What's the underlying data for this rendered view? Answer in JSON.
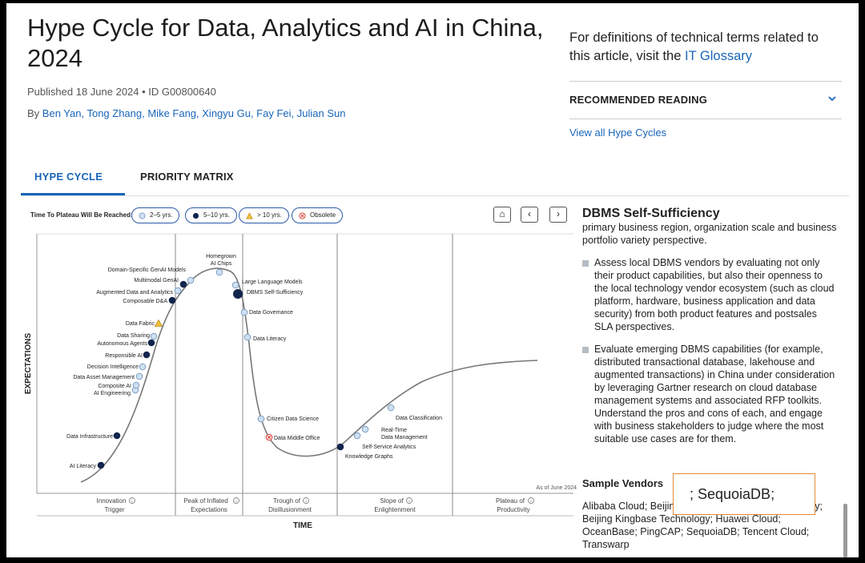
{
  "header": {
    "title": "Hype Cycle for Data, Analytics and AI in China, 2024",
    "published": "Published 18 June 2024 • ID G00800640",
    "by_label": "By",
    "authors": "Ben Yan, Tong Zhang, Mike Fang, Xingyu Gu, Fay Fei, Julian Sun"
  },
  "glossary": {
    "text": "For definitions of technical terms related to this article, visit the",
    "link": "IT Glossary"
  },
  "recommended": {
    "label": "RECOMMENDED READING"
  },
  "view_all": "View all Hype Cycles",
  "tabs": [
    {
      "label": "HYPE CYCLE",
      "active": true
    },
    {
      "label": "PRIORITY MATRIX",
      "active": false
    }
  ],
  "legend": {
    "label": "Time To Plateau Will Be Reached:",
    "items": [
      {
        "label": "2–5 yrs.",
        "icon": "light-circle-icon"
      },
      {
        "label": "5–10 yrs.",
        "icon": "dark-circle-icon"
      },
      {
        "label": "> 10 yrs.",
        "icon": "triangle-icon"
      },
      {
        "label": "Obsolete",
        "icon": "obsolete-x-icon"
      }
    ]
  },
  "nav": {
    "home": "⌂",
    "prev": "‹",
    "next": "›"
  },
  "chart_data": {
    "type": "line",
    "title": "",
    "ylabel": "EXPECTATIONS",
    "xlabel": "TIME",
    "as_of": "As of June 2024",
    "phases": [
      "Innovation Trigger",
      "Peak of Inflated Expectations",
      "Trough of Disillusionment",
      "Slope of Enlightenment",
      "Plateau of Productivity"
    ],
    "phase_info_icon": "info-icon",
    "points": [
      {
        "name": "AI Literacy",
        "category": "5–10 yrs."
      },
      {
        "name": "Data Infrastructure",
        "category": "5–10 yrs."
      },
      {
        "name": "AI Engineering",
        "category": "2–5 yrs."
      },
      {
        "name": "Composite AI",
        "category": "2–5 yrs."
      },
      {
        "name": "Data Asset Management",
        "category": "2–5 yrs."
      },
      {
        "name": "Decision Intelligence",
        "category": "2–5 yrs."
      },
      {
        "name": "Responsible AI",
        "category": "5–10 yrs."
      },
      {
        "name": "Autonomous Agents",
        "category": "5–10 yrs."
      },
      {
        "name": "Data Sharing",
        "category": "2–5 yrs."
      },
      {
        "name": "Data Fabric",
        "category": "> 10 yrs."
      },
      {
        "name": "Composable D&A",
        "category": "5–10 yrs."
      },
      {
        "name": "Augmented Data and Analytics",
        "category": "2–5 yrs."
      },
      {
        "name": "Multimodal GenAI",
        "category": "5–10 yrs."
      },
      {
        "name": "Domain-Specific GenAI Models",
        "category": "2–5 yrs."
      },
      {
        "name": "Homegrown AI Chips",
        "category": "2–5 yrs."
      },
      {
        "name": "Large Language Models",
        "category": "2–5 yrs."
      },
      {
        "name": "DBMS Self-Sufficiency",
        "category": "5–10 yrs."
      },
      {
        "name": "Data Governance",
        "category": "2–5 yrs."
      },
      {
        "name": "Data Literacy",
        "category": "2–5 yrs."
      },
      {
        "name": "Citizen Data Science",
        "category": "2–5 yrs."
      },
      {
        "name": "Data Middle Office",
        "category": "Obsolete"
      },
      {
        "name": "Knowledge Graphs",
        "category": "5–10 yrs."
      },
      {
        "name": "Self-Service Analytics",
        "category": "2–5 yrs."
      },
      {
        "name": "Real-Time Data Management",
        "category": "2–5 yrs."
      },
      {
        "name": "Data Classification",
        "category": "2–5 yrs."
      }
    ]
  },
  "side": {
    "title": "DBMS Self-Sufficiency",
    "cut_text": "primary business region, organization scale and business portfolio variety perspective.",
    "bullets": [
      "Assess local DBMS vendors by evaluating not only their product capabilities, but also their openness to the local technology vendor ecosystem (such as cloud platform, hardware, business application and data security) from both product features and postsales SLA perspectives.",
      "Evaluate emerging DBMS capabilities (for example, distributed transactional database, lakehouse and augmented transactions) in China under consideration by leveraging Gartner research on cloud database management systems and associated RFP toolkits. Understand the pros and cons of each, and engage with business stakeholders to judge where the most suitable use cases are for them."
    ],
    "vendors_heading": "Sample Vendors",
    "vendors_text": "Alibaba Cloud; Beijing Dameng Database Technology; Beijing Kingbase Technology; Huawei Cloud; OceanBase; PingCAP; SequoiaDB; Tencent Cloud; Transwarp"
  },
  "popup": {
    "text": "; SequoiaDB; "
  },
  "colors": {
    "accent": "#1a66b8",
    "dark_dot": "#13254d",
    "light_dot": "#cfe0f2",
    "triangle": "#f3c236",
    "obsolete": "#d9342b"
  }
}
